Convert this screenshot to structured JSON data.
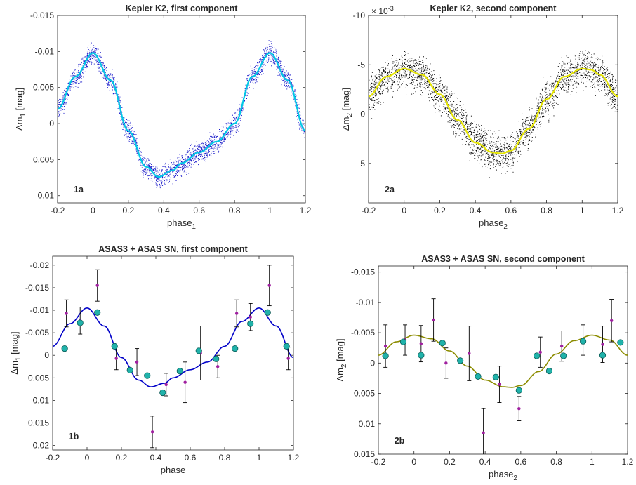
{
  "chart_data": [
    {
      "id": "1a",
      "type": "scatter",
      "title": "Kepler K2, first component",
      "panel_label": "1a",
      "xlabel": "phase",
      "xlabel_sub": "1",
      "ylabel": "Δm",
      "ylabel_sub": "1",
      "ylabel_unit": " [mag]",
      "xlim": [
        -0.2,
        1.2
      ],
      "ylim": [
        0.011,
        -0.015
      ],
      "y_reversed": true,
      "xticks": [
        -0.2,
        0,
        0.2,
        0.4,
        0.6,
        0.8,
        1,
        1.2
      ],
      "xtick_labels": [
        "-0.2",
        "0",
        "0.2",
        "0.4",
        "0.6",
        "0.8",
        "1",
        "1.2"
      ],
      "yticks": [
        -0.015,
        -0.01,
        -0.005,
        0,
        0.005,
        0.01
      ],
      "ytick_labels": [
        "-0.015",
        "-0.01",
        "-0.005",
        "0",
        "0.005",
        "0.01"
      ],
      "grid": false,
      "colors": {
        "scatter": "#1414c8",
        "fit": "#00c8e6"
      },
      "scatter_curve": {
        "x": [
          -0.2,
          -0.1,
          0,
          0.1,
          0.2,
          0.3,
          0.37,
          0.45,
          0.5,
          0.6,
          0.7,
          0.8,
          0.9,
          1.0,
          1.1,
          1.2
        ],
        "y": [
          -0.002,
          -0.0065,
          -0.0098,
          -0.006,
          0.001,
          0.006,
          0.0074,
          0.0065,
          0.0055,
          0.004,
          0.0025,
          0.0,
          -0.0065,
          -0.0098,
          -0.006,
          0.001
        ]
      },
      "scatter_spread": 0.0007,
      "fit_curve": {
        "x": [
          -0.2,
          -0.1,
          0,
          0.1,
          0.2,
          0.3,
          0.37,
          0.45,
          0.5,
          0.6,
          0.7,
          0.8,
          0.9,
          1.0,
          1.1,
          1.2
        ],
        "y": [
          -0.002,
          -0.0065,
          -0.0098,
          -0.006,
          0.001,
          0.006,
          0.0074,
          0.0065,
          0.0055,
          0.004,
          0.0025,
          0.0,
          -0.0065,
          -0.0098,
          -0.006,
          0.001
        ]
      }
    },
    {
      "id": "2a",
      "type": "scatter",
      "title": "Kepler K2, second component",
      "panel_label": "2a",
      "exponent_label": "× 10",
      "exponent_power": "-3",
      "xlabel": "phase",
      "xlabel_sub": "2",
      "ylabel": "Δm",
      "ylabel_sub": "2",
      "ylabel_unit": " [mag]",
      "xlim": [
        -0.2,
        1.2
      ],
      "ylim": [
        9,
        -10
      ],
      "y_reversed": true,
      "xticks": [
        -0.2,
        0,
        0.2,
        0.4,
        0.6,
        0.8,
        1,
        1.2
      ],
      "xtick_labels": [
        "-0.2",
        "0",
        "0.2",
        "0.4",
        "0.6",
        "0.8",
        "1",
        "1.2"
      ],
      "yticks": [
        -10,
        -5,
        0,
        5
      ],
      "ytick_labels": [
        "-10",
        "-5",
        "0",
        "5"
      ],
      "grid": false,
      "colors": {
        "scatter": "#000000",
        "fit": "#e6e600"
      },
      "scatter_curve": {
        "x": [
          -0.2,
          -0.1,
          0,
          0.1,
          0.2,
          0.3,
          0.4,
          0.5,
          0.55,
          0.6,
          0.7,
          0.8,
          0.9,
          1.0,
          1.05,
          1.1,
          1.2
        ],
        "y": [
          -1.8,
          -3.8,
          -4.6,
          -4.0,
          -2.0,
          0.6,
          2.9,
          3.9,
          4.0,
          3.7,
          1.5,
          -1.5,
          -3.8,
          -4.6,
          -4.5,
          -4.0,
          -1.8
        ]
      },
      "scatter_spread": 0.9,
      "fit_curve": {
        "x": [
          -0.2,
          -0.1,
          0,
          0.1,
          0.2,
          0.3,
          0.4,
          0.5,
          0.55,
          0.6,
          0.7,
          0.8,
          0.9,
          1.0,
          1.05,
          1.1,
          1.2
        ],
        "y": [
          -1.8,
          -3.8,
          -4.6,
          -4.0,
          -2.0,
          0.6,
          2.9,
          3.9,
          4.0,
          3.7,
          1.5,
          -1.5,
          -3.8,
          -4.6,
          -4.5,
          -4.0,
          -1.8
        ]
      }
    },
    {
      "id": "1b",
      "type": "scatter",
      "title": "ASAS3 + ASAS SN, first component",
      "panel_label": "1b",
      "xlabel": "phase",
      "xlabel_sub": "",
      "ylabel": "Δm",
      "ylabel_sub": "1",
      "ylabel_unit": " [mag]",
      "xlim": [
        -0.2,
        1.2
      ],
      "ylim": [
        0.021,
        -0.022
      ],
      "y_reversed": true,
      "xticks": [
        -0.2,
        0,
        0.2,
        0.4,
        0.6,
        0.8,
        1,
        1.2
      ],
      "xtick_labels": [
        "-0.2",
        "0",
        "0.2",
        "0.4",
        "0.6",
        "0.8",
        "1",
        "1.2"
      ],
      "yticks": [
        -0.02,
        -0.015,
        -0.01,
        -0.005,
        0,
        0.005,
        0.01,
        0.015,
        0.02
      ],
      "ytick_labels": [
        "-0.02",
        "-0.015",
        "-0.01",
        "-0.005",
        "0",
        "0.005",
        "0.01",
        "0.015",
        "0.02"
      ],
      "grid": false,
      "colors": {
        "fit": "#0000c8",
        "binned": "#20b2aa",
        "binned_stroke": "#0a5a55",
        "points": "#a020a0",
        "errorbars": "#000000"
      },
      "fit_curve": {
        "x": [
          -0.2,
          -0.1,
          0,
          0.1,
          0.2,
          0.3,
          0.37,
          0.45,
          0.5,
          0.6,
          0.7,
          0.8,
          0.9,
          1.0,
          1.1,
          1.2
        ],
        "y": [
          -0.002,
          -0.007,
          -0.0105,
          -0.0065,
          0.0005,
          0.0055,
          0.007,
          0.0062,
          0.005,
          0.0032,
          0.0015,
          -0.002,
          -0.0075,
          -0.0105,
          -0.0065,
          0.0005
        ]
      },
      "binned_points": [
        {
          "x": -0.13,
          "y": -0.0015
        },
        {
          "x": -0.04,
          "y": -0.0072
        },
        {
          "x": 0.06,
          "y": -0.0095
        },
        {
          "x": 0.16,
          "y": -0.002
        },
        {
          "x": 0.25,
          "y": 0.0033
        },
        {
          "x": 0.35,
          "y": 0.0045
        },
        {
          "x": 0.44,
          "y": 0.0083
        },
        {
          "x": 0.54,
          "y": 0.0035
        },
        {
          "x": 0.65,
          "y": -0.001
        },
        {
          "x": 0.75,
          "y": 0.0008
        },
        {
          "x": 0.86,
          "y": -0.0015
        },
        {
          "x": 0.95,
          "y": -0.007
        },
        {
          "x": 1.05,
          "y": -0.0095
        },
        {
          "x": 1.16,
          "y": -0.002
        }
      ],
      "raw_points": [
        {
          "x": -0.12,
          "y": -0.0093,
          "err": 0.003
        },
        {
          "x": -0.04,
          "y": -0.0077,
          "err": 0.003
        },
        {
          "x": 0.06,
          "y": -0.0155,
          "err": 0.0035
        },
        {
          "x": 0.17,
          "y": 0.0007,
          "err": 0.0025
        },
        {
          "x": 0.29,
          "y": 0.0015,
          "err": 0.003
        },
        {
          "x": 0.38,
          "y": 0.017,
          "err": 0.0035
        },
        {
          "x": 0.46,
          "y": 0.0065,
          "err": 0.0025
        },
        {
          "x": 0.57,
          "y": 0.006,
          "err": 0.0045
        },
        {
          "x": 0.66,
          "y": -0.0005,
          "err": 0.006
        },
        {
          "x": 0.76,
          "y": 0.0025,
          "err": 0.0025
        },
        {
          "x": 0.87,
          "y": -0.0093,
          "err": 0.003
        },
        {
          "x": 0.95,
          "y": -0.0085,
          "err": 0.003
        },
        {
          "x": 1.06,
          "y": -0.0155,
          "err": 0.0045
        },
        {
          "x": 1.17,
          "y": 0.0007,
          "err": 0.0025
        }
      ]
    },
    {
      "id": "2b",
      "type": "scatter",
      "title": "ASAS3 + ASAS SN, second component",
      "panel_label": "2b",
      "xlabel": "phase",
      "xlabel_sub": "2",
      "ylabel": "Δm",
      "ylabel_sub": "2",
      "ylabel_unit": " [mag]",
      "xlim": [
        -0.2,
        1.2
      ],
      "ylim": [
        0.015,
        -0.016
      ],
      "y_reversed": true,
      "xticks": [
        -0.2,
        0,
        0.2,
        0.4,
        0.6,
        0.8,
        1,
        1.2
      ],
      "xtick_labels": [
        "-0.2",
        "0",
        "0.2",
        "0.4",
        "0.6",
        "0.8",
        "1",
        "1.2"
      ],
      "yticks": [
        -0.015,
        -0.01,
        -0.005,
        0,
        0.005,
        0.01,
        0.015
      ],
      "ytick_labels": [
        "-0.015",
        "-0.01",
        "-0.005",
        "0",
        "0.005",
        "0.01",
        "0.015"
      ],
      "grid": false,
      "colors": {
        "fit": "#8c8c00",
        "binned": "#20b2aa",
        "binned_stroke": "#0a5a55",
        "points": "#a020a0",
        "errorbars": "#000000"
      },
      "fit_curve": {
        "x": [
          -0.2,
          -0.1,
          0,
          0.1,
          0.2,
          0.3,
          0.4,
          0.5,
          0.55,
          0.6,
          0.7,
          0.8,
          0.9,
          1.0,
          1.1,
          1.2
        ],
        "y": [
          -0.0013,
          -0.0035,
          -0.0046,
          -0.004,
          -0.002,
          0.0005,
          0.0028,
          0.0039,
          0.004,
          0.0037,
          0.0014,
          -0.0015,
          -0.0037,
          -0.0046,
          -0.0038,
          -0.0013
        ]
      },
      "binned_points": [
        {
          "x": -0.16,
          "y": -0.0012
        },
        {
          "x": -0.06,
          "y": -0.0035
        },
        {
          "x": 0.04,
          "y": -0.0013
        },
        {
          "x": 0.16,
          "y": -0.0033
        },
        {
          "x": 0.26,
          "y": -0.0004
        },
        {
          "x": 0.36,
          "y": 0.0022
        },
        {
          "x": 0.46,
          "y": 0.0023
        },
        {
          "x": 0.59,
          "y": 0.0045
        },
        {
          "x": 0.69,
          "y": -0.0012
        },
        {
          "x": 0.76,
          "y": 0.0013
        },
        {
          "x": 0.84,
          "y": -0.0012
        },
        {
          "x": 0.95,
          "y": -0.0036
        },
        {
          "x": 1.06,
          "y": -0.0013
        },
        {
          "x": 1.16,
          "y": -0.0034
        }
      ],
      "raw_points": [
        {
          "x": -0.16,
          "y": -0.0028,
          "err": 0.0035
        },
        {
          "x": -0.05,
          "y": -0.0038,
          "err": 0.0025
        },
        {
          "x": 0.04,
          "y": -0.0032,
          "err": 0.003
        },
        {
          "x": 0.11,
          "y": -0.0071,
          "err": 0.0035
        },
        {
          "x": 0.18,
          "y": 0.0,
          "err": 0.0025
        },
        {
          "x": 0.31,
          "y": -0.0016,
          "err": 0.0045
        },
        {
          "x": 0.39,
          "y": 0.0115,
          "err": 0.004
        },
        {
          "x": 0.48,
          "y": 0.0035,
          "err": 0.003
        },
        {
          "x": 0.59,
          "y": 0.0075,
          "err": 0.002
        },
        {
          "x": 0.71,
          "y": -0.0018,
          "err": 0.0025
        },
        {
          "x": 0.83,
          "y": -0.0028,
          "err": 0.0025
        },
        {
          "x": 0.95,
          "y": -0.0038,
          "err": 0.0025
        },
        {
          "x": 1.06,
          "y": -0.0031,
          "err": 0.003
        },
        {
          "x": 1.11,
          "y": -0.007,
          "err": 0.0035
        }
      ]
    }
  ]
}
